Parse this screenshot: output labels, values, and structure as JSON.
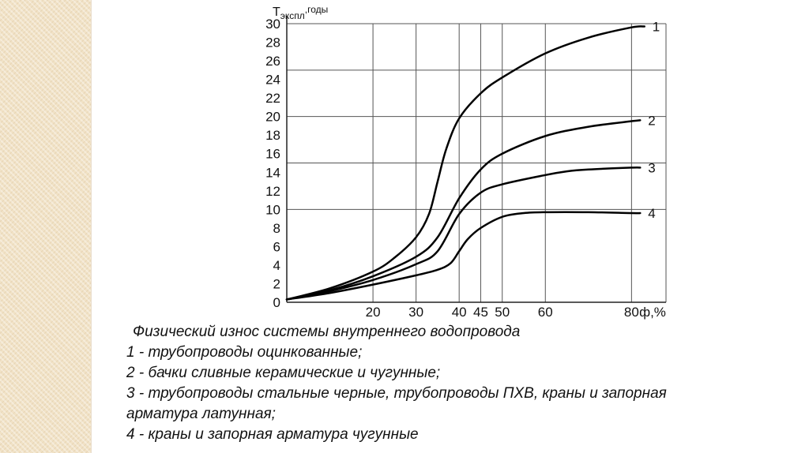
{
  "chart_data": {
    "type": "line",
    "ylabel_main": "T",
    "ylabel_sub": "экспл",
    "ylabel_unit": ",годы",
    "xlabel": "ф,%",
    "xlim": [
      0,
      88
    ],
    "ylim": [
      0,
      30
    ],
    "x_ticks": [
      20,
      30,
      40,
      45,
      50,
      60,
      80
    ],
    "y_ticks": [
      0,
      2,
      4,
      6,
      8,
      10,
      12,
      14,
      16,
      18,
      20,
      22,
      24,
      26,
      28,
      30
    ],
    "x_grid": [
      20,
      30,
      40,
      45,
      50,
      60,
      80
    ],
    "y_grid": [
      10,
      15,
      20,
      25
    ],
    "series": [
      {
        "name": "1",
        "x": [
          0,
          10,
          20,
          25,
          30,
          33,
          35,
          37,
          40,
          45,
          50,
          60,
          70,
          80,
          83
        ],
        "y": [
          0.3,
          1.5,
          3.3,
          4.8,
          7.0,
          9.5,
          13,
          16.5,
          19.8,
          22.5,
          24.2,
          26.8,
          28.5,
          29.6,
          29.7
        ]
      },
      {
        "name": "2",
        "x": [
          0,
          10,
          20,
          30,
          35,
          40,
          45,
          50,
          60,
          70,
          80,
          82
        ],
        "y": [
          0.3,
          1.3,
          2.8,
          4.9,
          7.0,
          11.2,
          14.3,
          16.0,
          17.9,
          18.9,
          19.5,
          19.6
        ]
      },
      {
        "name": "3",
        "x": [
          0,
          10,
          20,
          30,
          35,
          40,
          45,
          50,
          60,
          65,
          70,
          80,
          82
        ],
        "y": [
          0.3,
          1.2,
          2.4,
          4.1,
          5.5,
          9.5,
          11.8,
          12.7,
          13.7,
          14.1,
          14.3,
          14.5,
          14.5
        ]
      },
      {
        "name": "4",
        "x": [
          0,
          10,
          20,
          30,
          35,
          38,
          40,
          42,
          45,
          50,
          55,
          60,
          70,
          80,
          82
        ],
        "y": [
          0.3,
          1.0,
          1.9,
          2.9,
          3.5,
          4.2,
          5.5,
          6.8,
          8.0,
          9.2,
          9.6,
          9.7,
          9.7,
          9.6,
          9.6
        ]
      }
    ]
  },
  "caption": {
    "title": "Физический износ системы внутреннего водопровода",
    "lines": [
      "1 - трубопроводы оцинкованные;",
      "2 - бачки сливные керамические и чугунные;",
      "3 - трубопроводы стальные черные, трубопроводы ПХВ, краны и запорная",
      "арматура латунная;",
      "4 - краны и запорная арматура чугунные"
    ]
  }
}
